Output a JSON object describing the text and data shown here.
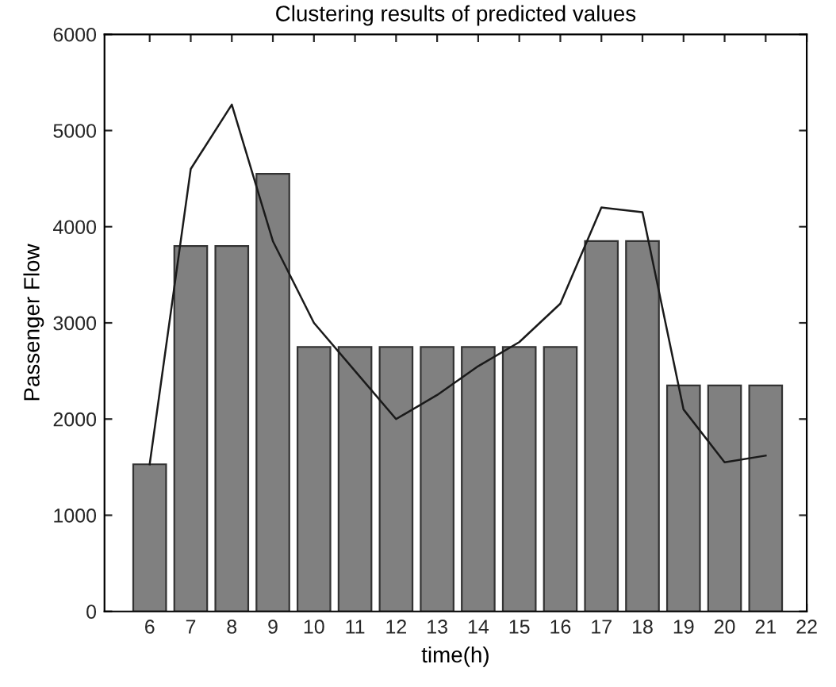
{
  "chart_data": {
    "type": "bar",
    "title": "Clustering results of predicted values",
    "xlabel": "time(h)",
    "ylabel": "Passenger Flow",
    "x": [
      6,
      7,
      8,
      9,
      10,
      11,
      12,
      13,
      14,
      15,
      16,
      17,
      18,
      19,
      20,
      21
    ],
    "series": [
      {
        "color": "#808080",
        "values": [
          1530,
          3800,
          3800,
          4550,
          2750,
          2750,
          2750,
          2750,
          2750,
          2750,
          2750,
          3850,
          3850,
          2350,
          2350,
          2350
        ]
      },
      {
        "type": "line",
        "color": "#1a1a1a",
        "values": [
          1530,
          4600,
          5270,
          3850,
          3000,
          2500,
          2000,
          2250,
          2550,
          2800,
          3200,
          4200,
          4150,
          2100,
          1550,
          1620
        ]
      }
    ],
    "xlim": [
      4.9,
      22
    ],
    "xticks": [
      6,
      7,
      8,
      9,
      10,
      11,
      12,
      13,
      14,
      15,
      16,
      17,
      18,
      19,
      20,
      21,
      22
    ],
    "ylim": [
      0,
      6000
    ],
    "yticks": [
      0,
      1000,
      2000,
      3000,
      4000,
      5000,
      6000
    ],
    "grid": false,
    "legend": false
  }
}
